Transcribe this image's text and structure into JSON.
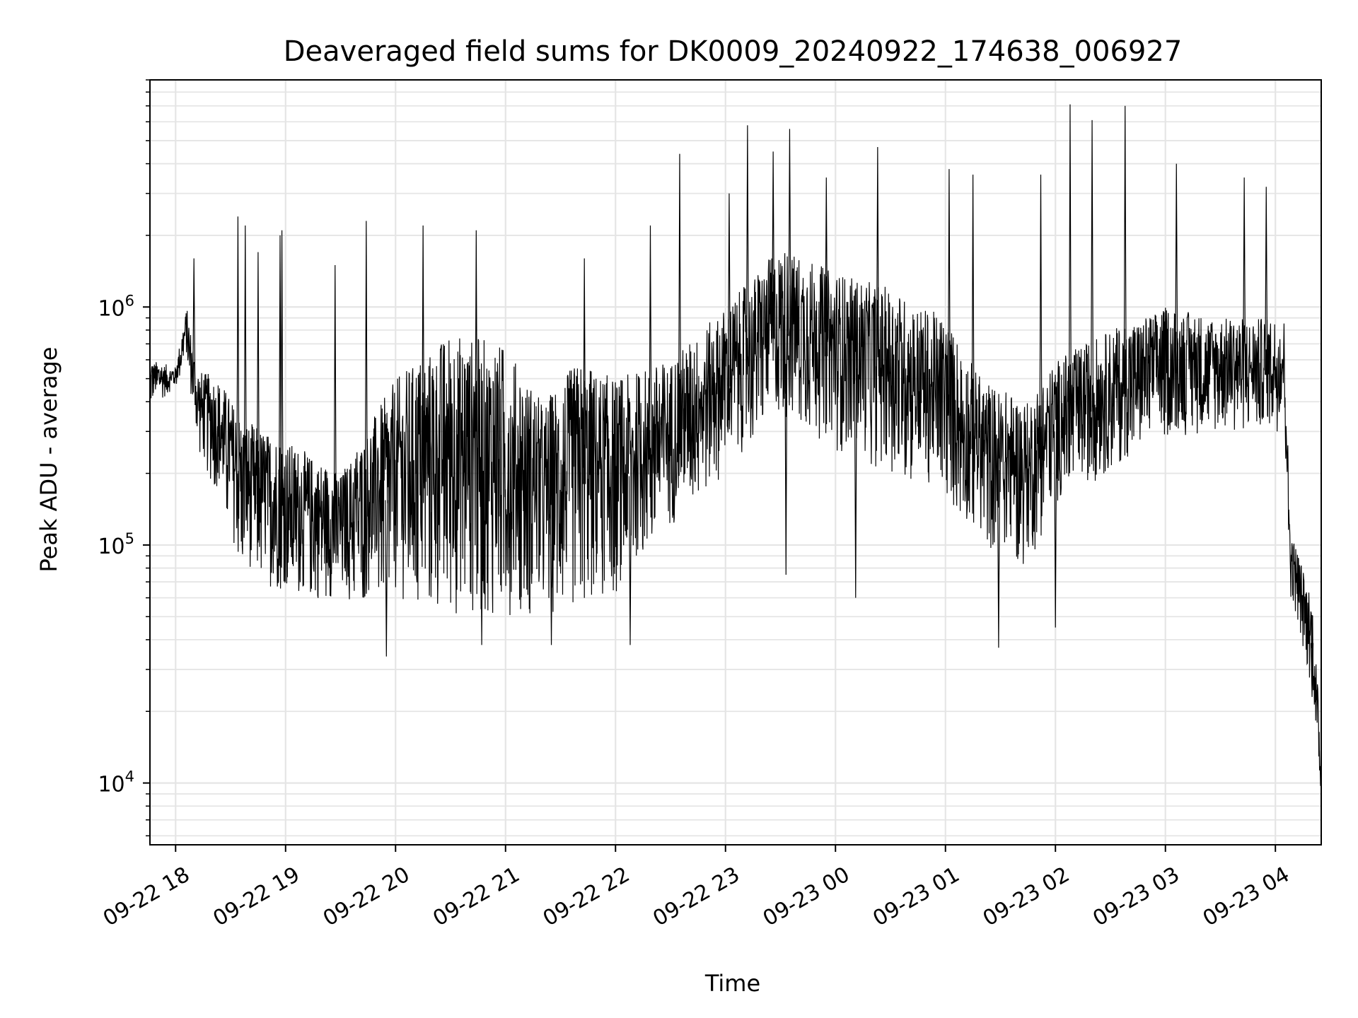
{
  "chart_data": {
    "type": "line",
    "title": "Deaveraged field sums for DK0009_20240922_174638_006927",
    "xlabel": "Time",
    "ylabel": "Peak ADU - average",
    "x_scale": "time",
    "y_scale": "log",
    "xlim": [
      "2024-09-22 17:46",
      "2024-09-23 04:25"
    ],
    "ylim": [
      5500,
      9000000
    ],
    "grid": true,
    "line_color": "#000000",
    "grid_color": "#e5e5e5",
    "x_ticks": [
      {
        "t": "2024-09-22 18:00",
        "label": "09-22 18"
      },
      {
        "t": "2024-09-22 19:00",
        "label": "09-22 19"
      },
      {
        "t": "2024-09-22 20:00",
        "label": "09-22 20"
      },
      {
        "t": "2024-09-22 21:00",
        "label": "09-22 21"
      },
      {
        "t": "2024-09-22 22:00",
        "label": "09-22 22"
      },
      {
        "t": "2024-09-22 23:00",
        "label": "09-22 23"
      },
      {
        "t": "2024-09-23 00:00",
        "label": "09-23 00"
      },
      {
        "t": "2024-09-23 01:00",
        "label": "09-23 01"
      },
      {
        "t": "2024-09-23 02:00",
        "label": "09-23 02"
      },
      {
        "t": "2024-09-23 03:00",
        "label": "09-23 03"
      },
      {
        "t": "2024-09-23 04:00",
        "label": "09-23 04"
      }
    ],
    "y_ticks": [
      {
        "value": 10000,
        "base": "10",
        "exp": "4"
      },
      {
        "value": 100000,
        "base": "10",
        "exp": "5"
      },
      {
        "value": 1000000,
        "base": "10",
        "exp": "6"
      }
    ],
    "series": [
      {
        "envelope": [
          {
            "t": "2024-09-22 17:46",
            "low": 380000,
            "high": 600000
          },
          {
            "t": "2024-09-22 18:00",
            "low": 450000,
            "high": 560000
          },
          {
            "t": "2024-09-22 18:06",
            "low": 600000,
            "high": 1000000
          },
          {
            "t": "2024-09-22 18:12",
            "low": 250000,
            "high": 550000
          },
          {
            "t": "2024-09-22 18:24",
            "low": 150000,
            "high": 500000
          },
          {
            "t": "2024-09-22 18:35",
            "low": 80000,
            "high": 350000
          },
          {
            "t": "2024-09-22 18:50",
            "low": 65000,
            "high": 300000
          },
          {
            "t": "2024-09-22 19:10",
            "low": 60000,
            "high": 250000
          },
          {
            "t": "2024-09-22 19:30",
            "low": 58000,
            "high": 200000
          },
          {
            "t": "2024-09-22 20:00",
            "low": 55000,
            "high": 500000
          },
          {
            "t": "2024-09-22 20:30",
            "low": 50000,
            "high": 800000
          },
          {
            "t": "2024-09-22 21:00",
            "low": 50000,
            "high": 700000
          },
          {
            "t": "2024-09-22 21:20",
            "low": 50000,
            "high": 400000
          },
          {
            "t": "2024-09-22 21:40",
            "low": 55000,
            "high": 600000
          },
          {
            "t": "2024-09-22 22:00",
            "low": 60000,
            "high": 500000
          },
          {
            "t": "2024-09-22 22:30",
            "low": 120000,
            "high": 600000
          },
          {
            "t": "2024-09-22 23:00",
            "low": 200000,
            "high": 1000000
          },
          {
            "t": "2024-09-22 23:30",
            "low": 350000,
            "high": 1800000
          },
          {
            "t": "2024-09-23 00:00",
            "low": 250000,
            "high": 1400000
          },
          {
            "t": "2024-09-23 00:30",
            "low": 200000,
            "high": 1200000
          },
          {
            "t": "2024-09-23 01:00",
            "low": 150000,
            "high": 900000
          },
          {
            "t": "2024-09-23 01:20",
            "low": 100000,
            "high": 500000
          },
          {
            "t": "2024-09-23 01:45",
            "low": 80000,
            "high": 400000
          },
          {
            "t": "2024-09-23 02:00",
            "low": 150000,
            "high": 600000
          },
          {
            "t": "2024-09-23 02:30",
            "low": 200000,
            "high": 800000
          },
          {
            "t": "2024-09-23 03:00",
            "low": 280000,
            "high": 1000000
          },
          {
            "t": "2024-09-23 03:30",
            "low": 300000,
            "high": 900000
          },
          {
            "t": "2024-09-23 04:05",
            "low": 300000,
            "high": 900000
          },
          {
            "t": "2024-09-23 04:08",
            "low": 60000,
            "high": 120000
          },
          {
            "t": "2024-09-23 04:20",
            "low": 25000,
            "high": 60000
          },
          {
            "t": "2024-09-23 04:25",
            "low": 7000,
            "high": 15000
          }
        ],
        "spikes_up": [
          {
            "t": "2024-09-22 18:10",
            "value": 1600000
          },
          {
            "t": "2024-09-22 18:34",
            "value": 2400000
          },
          {
            "t": "2024-09-22 18:38",
            "value": 2200000
          },
          {
            "t": "2024-09-22 18:45",
            "value": 1700000
          },
          {
            "t": "2024-09-22 18:57",
            "value": 2000000
          },
          {
            "t": "2024-09-22 18:58",
            "value": 2100000
          },
          {
            "t": "2024-09-22 19:27",
            "value": 1500000
          },
          {
            "t": "2024-09-22 19:44",
            "value": 2300000
          },
          {
            "t": "2024-09-22 20:15",
            "value": 2200000
          },
          {
            "t": "2024-09-22 20:44",
            "value": 2100000
          },
          {
            "t": "2024-09-22 21:43",
            "value": 1600000
          },
          {
            "t": "2024-09-22 22:19",
            "value": 2200000
          },
          {
            "t": "2024-09-22 22:35",
            "value": 4400000
          },
          {
            "t": "2024-09-22 23:02",
            "value": 3000000
          },
          {
            "t": "2024-09-22 23:12",
            "value": 5800000
          },
          {
            "t": "2024-09-22 23:26",
            "value": 4500000
          },
          {
            "t": "2024-09-22 23:35",
            "value": 5600000
          },
          {
            "t": "2024-09-22 23:55",
            "value": 3500000
          },
          {
            "t": "2024-09-23 00:23",
            "value": 4700000
          },
          {
            "t": "2024-09-23 01:02",
            "value": 3800000
          },
          {
            "t": "2024-09-23 01:15",
            "value": 3600000
          },
          {
            "t": "2024-09-23 01:52",
            "value": 3600000
          },
          {
            "t": "2024-09-23 02:08",
            "value": 7100000
          },
          {
            "t": "2024-09-23 02:20",
            "value": 6100000
          },
          {
            "t": "2024-09-23 02:38",
            "value": 7000000
          },
          {
            "t": "2024-09-23 03:06",
            "value": 4000000
          },
          {
            "t": "2024-09-23 03:43",
            "value": 3500000
          },
          {
            "t": "2024-09-23 03:55",
            "value": 3200000
          }
        ],
        "spikes_down": [
          {
            "t": "2024-09-22 19:55",
            "value": 34000
          },
          {
            "t": "2024-09-22 20:47",
            "value": 38000
          },
          {
            "t": "2024-09-22 21:25",
            "value": 38000
          },
          {
            "t": "2024-09-22 22:08",
            "value": 38000
          },
          {
            "t": "2024-09-22 23:33",
            "value": 75000
          },
          {
            "t": "2024-09-23 00:11",
            "value": 60000
          },
          {
            "t": "2024-09-23 01:29",
            "value": 37000
          },
          {
            "t": "2024-09-23 02:00",
            "value": 45000
          },
          {
            "t": "2024-09-23 04:20",
            "value": 23000
          }
        ]
      }
    ]
  }
}
